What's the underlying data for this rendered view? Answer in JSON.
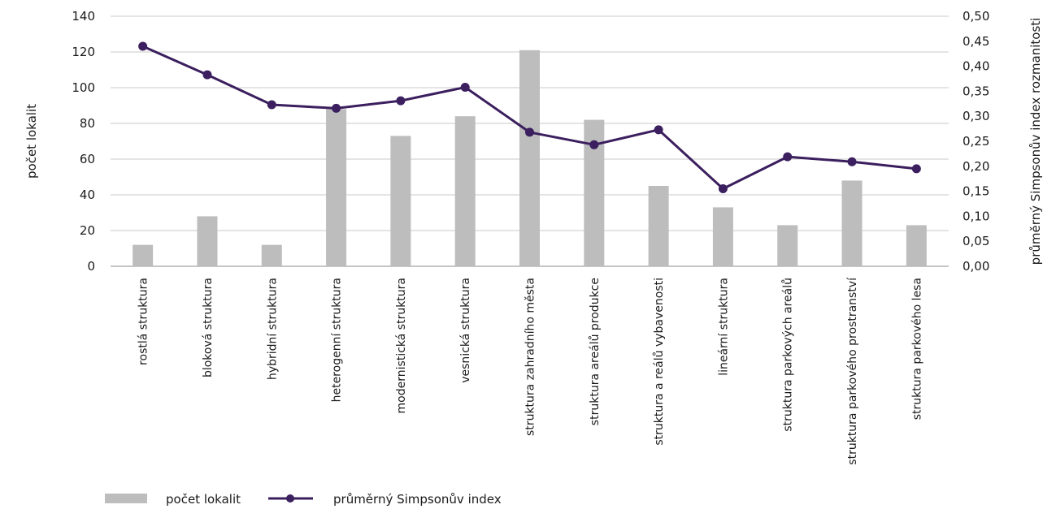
{
  "chart_data": {
    "type": "bar",
    "categories": [
      "rostlá struktura",
      "bloková struktura",
      "hybridní struktura",
      "heterogenní struktura",
      "modernistická struktura",
      "vesnická struktura",
      "struktura zahradního města",
      "struktura areálů produkce",
      "struktura a reálů vybavenosti",
      "lineární struktura",
      "struktura parkových areálů",
      "struktura parkového prostranství",
      "struktura parkového lesa"
    ],
    "series": [
      {
        "name": "počet lokalit",
        "type": "bar",
        "axis": "left",
        "color": "#bdbdbd",
        "values": [
          12,
          28,
          12,
          88,
          73,
          84,
          121,
          82,
          45,
          33,
          23,
          48,
          23
        ]
      },
      {
        "name": "průměrný Simpsonův index",
        "type": "line",
        "axis": "right",
        "color": "#3b1f5e",
        "values": [
          0.44,
          0.383,
          0.323,
          0.316,
          0.331,
          0.358,
          0.268,
          0.243,
          0.273,
          0.155,
          0.219,
          0.209,
          0.195
        ]
      }
    ],
    "ylabel": "počet lokalit",
    "ylim": [
      0,
      140
    ],
    "yticks": [
      "0",
      "20",
      "40",
      "60",
      "80",
      "100",
      "120",
      "140"
    ],
    "y2label": "průměrný Simpsonův index rozmanitosti",
    "y2lim": [
      0,
      0.5
    ],
    "y2ticks": [
      "0,00",
      "0,05",
      "0,10",
      "0,15",
      "0,20",
      "0,25",
      "0,30",
      "0,35",
      "0,40",
      "0,45",
      "0,50"
    ],
    "grid": true,
    "legend_position": "bottom-left"
  }
}
